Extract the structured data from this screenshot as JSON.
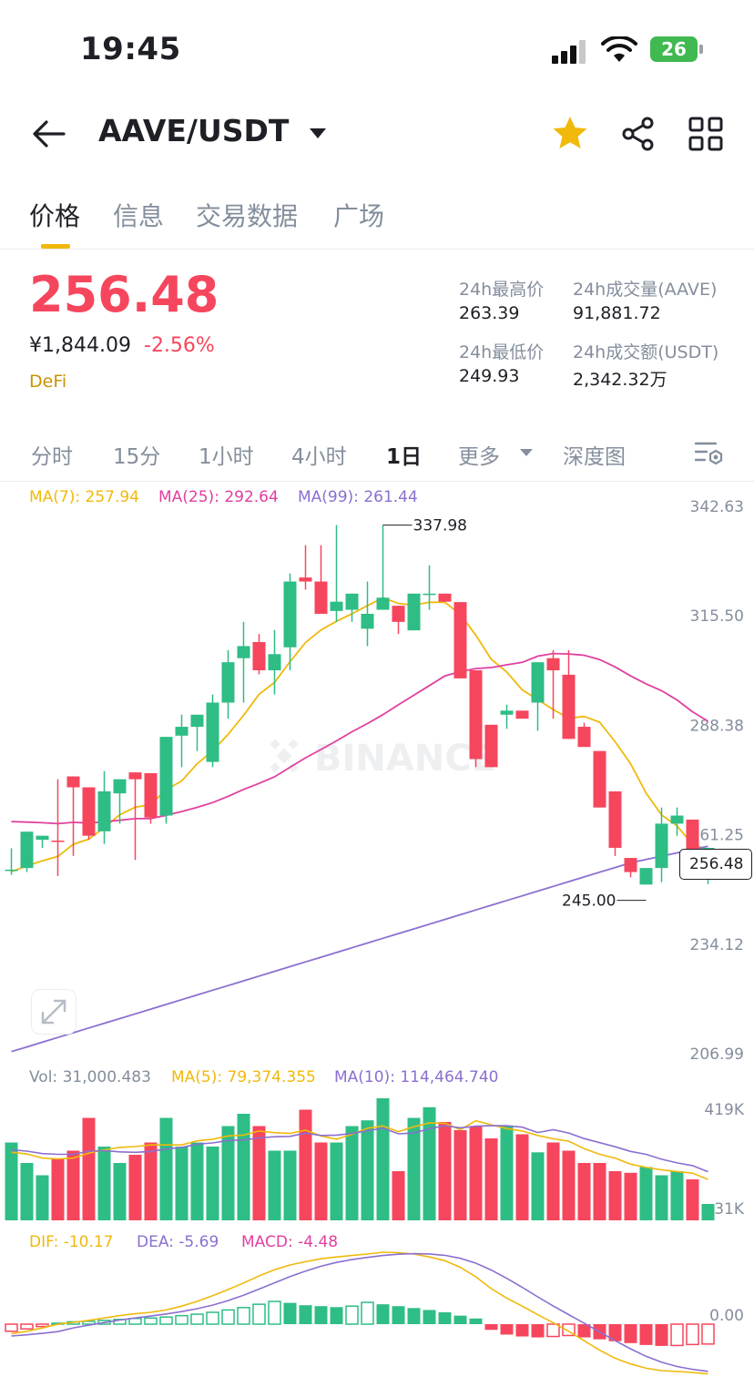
{
  "status": {
    "time": "19:45",
    "battery": "26"
  },
  "header": {
    "pair": "AAVE/USDT"
  },
  "tabs": [
    "价格",
    "信息",
    "交易数据",
    "广场"
  ],
  "ticker": {
    "price": "256.48",
    "cny": "¥1,844.09",
    "change": "-2.56%",
    "tag": "DeFi",
    "high_label": "24h最高价",
    "high": "263.39",
    "low_label": "24h最低价",
    "low": "249.93",
    "vol_label": "24h成交量(AAVE)",
    "vol": "91,881.72",
    "amount_label": "24h成交额(USDT)",
    "amount": "2,342.32万"
  },
  "intervals": [
    "分时",
    "15分",
    "1小时",
    "4小时",
    "1日",
    "更多",
    "深度图"
  ],
  "colors": {
    "up": "#2ebd85",
    "down": "#f6465d",
    "ma7": "#f0b90b",
    "ma25": "#e040a0",
    "ma99": "#8b6fd0"
  },
  "ma_legend": {
    "ma7": "MA(7): 257.94",
    "ma25": "MA(25): 292.64",
    "ma99": "MA(99): 261.44"
  },
  "watermark": "BINANCE",
  "chart_data": {
    "type": "candlestick",
    "y_axis_labels": [
      "342.63",
      "315.50",
      "288.38",
      "261.25",
      "234.12",
      "206.99"
    ],
    "ylim": [
      206.99,
      342.63
    ],
    "high_marker": "337.98",
    "low_marker": "245.00",
    "last_price": "256.48",
    "candles": [
      [
        252.5,
        257.9,
        251.3,
        252.6
      ],
      [
        253,
        262,
        252,
        262
      ],
      [
        260,
        260,
        258,
        261
      ],
      [
        259.8,
        275,
        251,
        259.5
      ],
      [
        275.7,
        274,
        256,
        273
      ],
      [
        273,
        273,
        260,
        261
      ],
      [
        262.1,
        277,
        259,
        272
      ],
      [
        271.5,
        268,
        264,
        275
      ],
      [
        276.7,
        265,
        255,
        275
      ],
      [
        276.5,
        257,
        264,
        265.5
      ],
      [
        266,
        285,
        264,
        285.5
      ],
      [
        285.8,
        291,
        278,
        288
      ],
      [
        288,
        290,
        282,
        291
      ],
      [
        279.3,
        296,
        278,
        294
      ],
      [
        294,
        307,
        290,
        304
      ],
      [
        305,
        314,
        294,
        308
      ],
      [
        309,
        311,
        301,
        302
      ],
      [
        302,
        312,
        296,
        306
      ],
      [
        307.7,
        326,
        302,
        324
      ],
      [
        325,
        333,
        322,
        324
      ],
      [
        324,
        333,
        318,
        316
      ],
      [
        316.7,
        338,
        314,
        319
      ],
      [
        317,
        314,
        314,
        321
      ],
      [
        312.3,
        324,
        308,
        316
      ],
      [
        317,
        337.98,
        322,
        320
      ],
      [
        318,
        317,
        311,
        314
      ],
      [
        311.9,
        321,
        316,
        321
      ],
      [
        321,
        328,
        317,
        321
      ],
      [
        321,
        316,
        319,
        319
      ],
      [
        318.9,
        304,
        302,
        300
      ],
      [
        302,
        290,
        278,
        280
      ],
      [
        288.5,
        281,
        291,
        278
      ],
      [
        291,
        293.5,
        287.5,
        292
      ],
      [
        292,
        292,
        291,
        290
      ],
      [
        294,
        304,
        287,
        304
      ],
      [
        305,
        307,
        290,
        302
      ],
      [
        300.9,
        307,
        285,
        285
      ],
      [
        288,
        289,
        284,
        283
      ],
      [
        282,
        282,
        275,
        268
      ],
      [
        272,
        271,
        256,
        258
      ],
      [
        255.5,
        249,
        250.7,
        252
      ],
      [
        248.9,
        245,
        256,
        253
      ],
      [
        253,
        268,
        249.5,
        264
      ],
      [
        264,
        268,
        261,
        266
      ],
      [
        265,
        253,
        267,
        251
      ],
      [
        253.8,
        256.5,
        249,
        258
      ]
    ],
    "volume_axis_labels": [
      "419K",
      "31K"
    ],
    "volume_legend": {
      "vol": "Vol: 31,000.483",
      "ma5": "MA(5): 79,374.355",
      "ma10": "MA(10): 114,464.740"
    },
    "macd_axis_label": "0.00",
    "macd_legend": {
      "dif": "DIF: -10.17",
      "dea": "DEA: -5.69",
      "macd": "MACD: -4.48"
    }
  }
}
